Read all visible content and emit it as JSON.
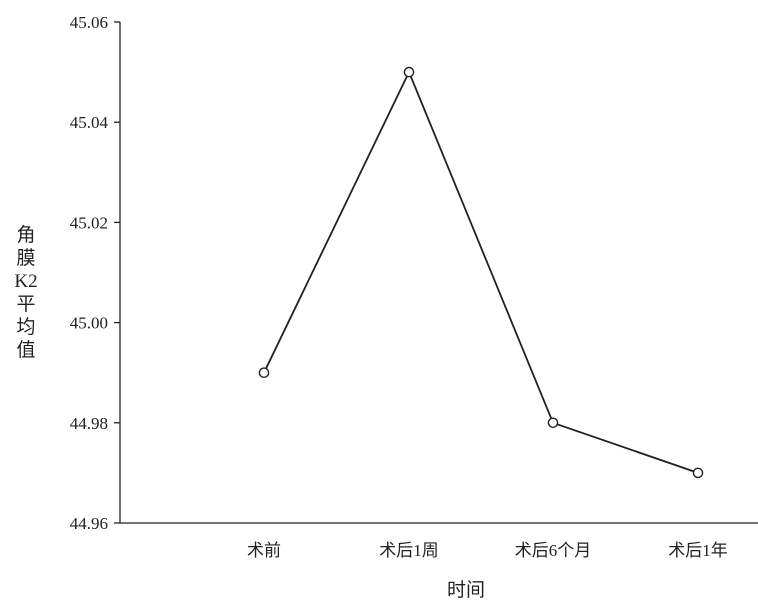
{
  "chart_data": {
    "type": "line",
    "categories": [
      "术前",
      "术后1周",
      "术后6个月",
      "术后1年"
    ],
    "series": [
      {
        "values": [
          44.99,
          45.05,
          44.98,
          44.97
        ]
      }
    ],
    "xlabel": "时间",
    "ylabel": "角膜K2平均值",
    "ylim": [
      44.96,
      45.06
    ],
    "yticks": [
      "44.96",
      "44.98",
      "45.00",
      "45.02",
      "45.04",
      "45.06"
    ],
    "grid": false,
    "legend": "none",
    "colors": {
      "line": "#222222",
      "marker_fill": "#ffffff"
    },
    "marker": "open-circle"
  }
}
